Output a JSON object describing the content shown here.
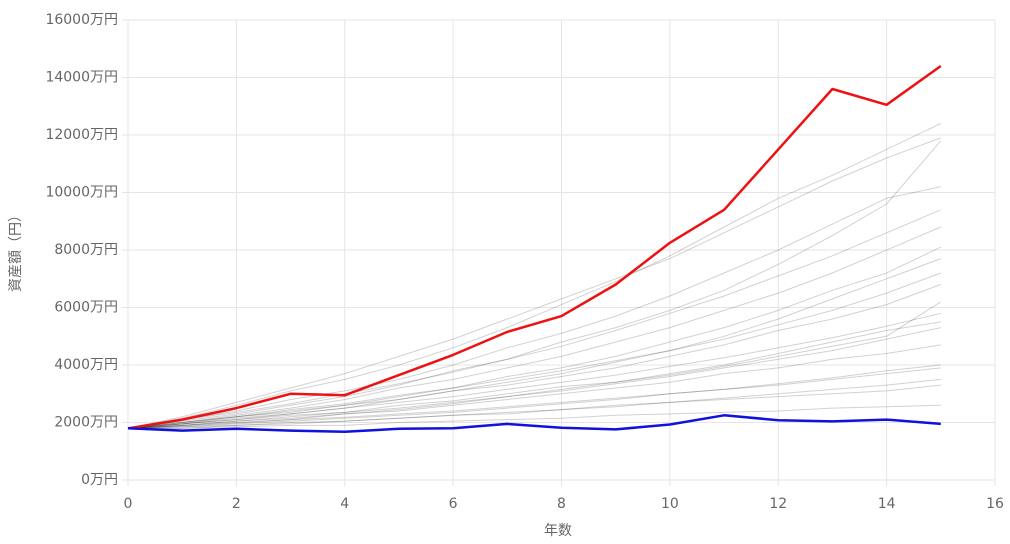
{
  "chart_data": {
    "type": "line",
    "x_label": "年数",
    "y_label": "資産額（円）",
    "xlim": [
      0,
      16
    ],
    "xticks": [
      0,
      2,
      4,
      6,
      8,
      10,
      12,
      14,
      16
    ],
    "ylim": [
      0,
      16000
    ],
    "yticks": [
      {
        "value": 0,
        "label": "0万円"
      },
      {
        "value": 2000,
        "label": "2000万円"
      },
      {
        "value": 4000,
        "label": "4000万円"
      },
      {
        "value": 6000,
        "label": "6000万円"
      },
      {
        "value": 8000,
        "label": "8000万円"
      },
      {
        "value": 10000,
        "label": "10000万円"
      },
      {
        "value": 12000,
        "label": "12000万円"
      },
      {
        "value": 14000,
        "label": "14000万円"
      },
      {
        "value": 16000,
        "label": "16000万円"
      }
    ],
    "grid": true,
    "x": [
      0,
      1,
      2,
      3,
      4,
      5,
      6,
      7,
      8,
      9,
      10,
      11,
      12,
      13,
      14,
      15
    ],
    "series": [
      {
        "color": "rgba(0,0,0,0.18)",
        "values": [
          1800,
          1950,
          2150,
          2300,
          2500,
          2800,
          3100,
          3300,
          3600,
          3900,
          4300,
          4700,
          5200,
          5600,
          6100,
          6800
        ]
      },
      {
        "color": "rgba(0,0,0,0.18)",
        "values": [
          1800,
          1900,
          2000,
          2100,
          2300,
          2400,
          2600,
          2800,
          3000,
          3200,
          3400,
          3700,
          3900,
          4200,
          4400,
          4700
        ]
      },
      {
        "color": "rgba(0,0,0,0.18)",
        "values": [
          1800,
          1850,
          1900,
          1950,
          2050,
          2150,
          2250,
          2300,
          2450,
          2600,
          2700,
          2850,
          3000,
          3150,
          3300,
          3500
        ]
      },
      {
        "color": "rgba(0,0,0,0.18)",
        "values": [
          1800,
          2000,
          2250,
          2500,
          2800,
          3200,
          3500,
          3900,
          4300,
          4800,
          5300,
          5900,
          6500,
          7200,
          8000,
          8800
        ]
      },
      {
        "color": "rgba(0,0,0,0.18)",
        "values": [
          1800,
          2100,
          2400,
          2800,
          3100,
          3500,
          4000,
          4600,
          5100,
          5700,
          6400,
          7200,
          8000,
          8900,
          9800,
          10200
        ]
      },
      {
        "color": "rgba(0,0,0,0.18)",
        "values": [
          1800,
          1800,
          1850,
          1900,
          1900,
          2000,
          2050,
          2100,
          2150,
          2250,
          2300,
          2350,
          2400,
          2500,
          2550,
          2600
        ]
      },
      {
        "color": "rgba(0,0,0,0.18)",
        "values": [
          1800,
          1950,
          2100,
          2250,
          2350,
          2600,
          2750,
          3000,
          3250,
          3400,
          3700,
          4000,
          4400,
          4800,
          5200,
          5500
        ]
      },
      {
        "color": "rgba(0,0,0,0.18)",
        "values": [
          1800,
          2050,
          2300,
          2600,
          2900,
          3300,
          3800,
          4200,
          4800,
          5300,
          5900,
          6600,
          7500,
          8500,
          9600,
          11800
        ]
      },
      {
        "color": "rgba(0,0,0,0.18)",
        "values": [
          1800,
          1900,
          2050,
          2150,
          2300,
          2450,
          2650,
          2900,
          3100,
          3350,
          3600,
          3900,
          4200,
          4500,
          4900,
          5300
        ]
      },
      {
        "color": "rgba(0,0,0,0.18)",
        "values": [
          1800,
          2000,
          2200,
          2450,
          2650,
          2950,
          3200,
          3500,
          3800,
          4150,
          4500,
          4900,
          5400,
          5900,
          6500,
          7200
        ]
      },
      {
        "color": "rgba(0,0,0,0.18)",
        "values": [
          1800,
          1880,
          1980,
          2100,
          2180,
          2300,
          2400,
          2550,
          2700,
          2850,
          3000,
          3150,
          3350,
          3550,
          3800,
          4000
        ]
      },
      {
        "color": "rgba(0,0,0,0.18)",
        "values": [
          1800,
          2150,
          2600,
          3100,
          3500,
          4000,
          4600,
          5300,
          6100,
          6900,
          7800,
          8800,
          9800,
          10600,
          11500,
          12400
        ]
      },
      {
        "color": "rgba(0,0,0,0.18)",
        "values": [
          1800,
          1950,
          2200,
          2350,
          2600,
          2800,
          3100,
          3400,
          3700,
          4100,
          4500,
          5000,
          5600,
          6300,
          7000,
          7700
        ]
      },
      {
        "color": "rgba(0,0,0,0.18)",
        "values": [
          1800,
          1850,
          1950,
          2050,
          2150,
          2250,
          2350,
          2500,
          2650,
          2800,
          3000,
          3150,
          3300,
          3500,
          3700,
          3900
        ]
      },
      {
        "color": "rgba(0,0,0,0.18)",
        "values": [
          1800,
          2100,
          2350,
          2650,
          3000,
          3350,
          3750,
          4200,
          4650,
          5200,
          5800,
          6400,
          7100,
          7800,
          8600,
          9400
        ]
      },
      {
        "color": "rgba(0,0,0,0.18)",
        "values": [
          1800,
          2000,
          2200,
          2400,
          2600,
          2900,
          3200,
          3600,
          3900,
          4300,
          4800,
          5300,
          5900,
          6600,
          7200,
          8100
        ]
      },
      {
        "color": "rgba(0,0,0,0.18)",
        "values": [
          1800,
          1800,
          1900,
          2000,
          2050,
          2150,
          2250,
          2350,
          2450,
          2550,
          2700,
          2800,
          2900,
          3000,
          3100,
          3300
        ]
      },
      {
        "color": "rgba(0,0,0,0.18)",
        "values": [
          1800,
          2200,
          2700,
          3200,
          3700,
          4300,
          4900,
          5600,
          6300,
          7000,
          7700,
          8600,
          9500,
          10400,
          11200,
          11900
        ]
      },
      {
        "color": "rgba(0,0,0,0.18)",
        "values": [
          1800,
          1950,
          2100,
          2300,
          2500,
          2700,
          2900,
          3150,
          3400,
          3650,
          3950,
          4250,
          4600,
          4950,
          5350,
          5800
        ]
      },
      {
        "color": "rgba(0,0,0,0.18)",
        "values": [
          1800,
          1900,
          2050,
          2200,
          2350,
          2500,
          2700,
          2900,
          3150,
          3400,
          3650,
          3950,
          4300,
          4650,
          5000,
          6200
        ]
      },
      {
        "color": "#ee1111",
        "values": [
          1800,
          2100,
          2500,
          3000,
          2950,
          3650,
          4350,
          5150,
          5700,
          6800,
          8250,
          9400,
          11500,
          13600,
          13050,
          14400
        ]
      },
      {
        "color": "#1111dd",
        "values": [
          1800,
          1720,
          1780,
          1720,
          1680,
          1780,
          1800,
          1950,
          1820,
          1760,
          1930,
          2250,
          2080,
          2040,
          2100,
          1950
        ]
      }
    ]
  }
}
